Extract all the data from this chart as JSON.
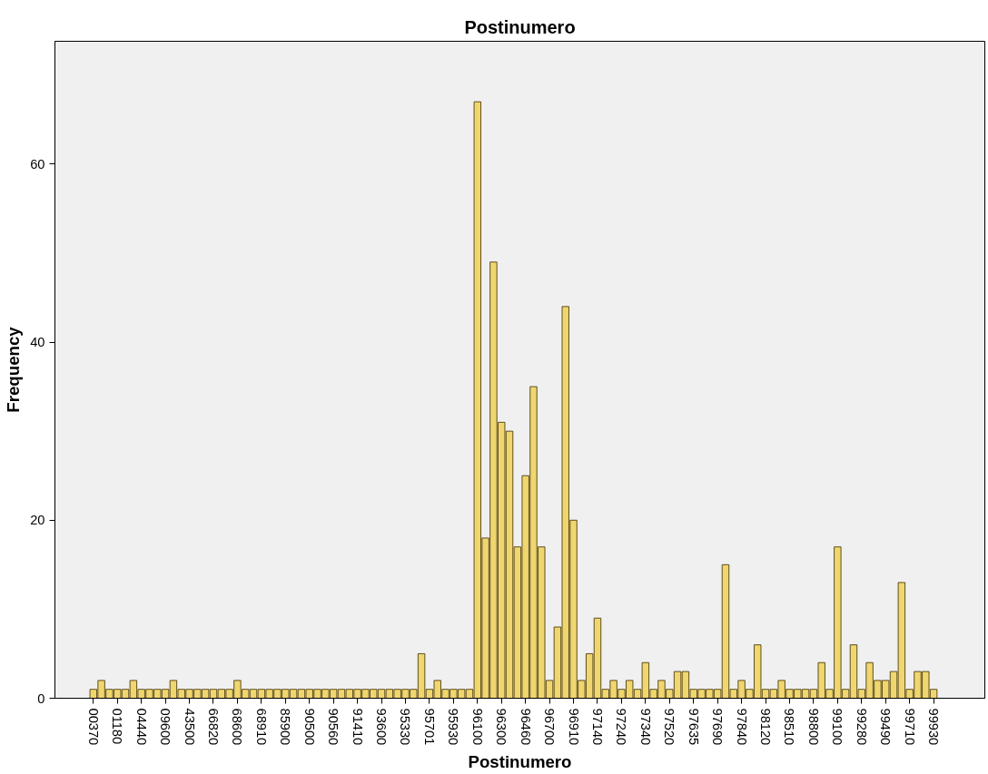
{
  "chart_data": {
    "type": "bar",
    "title": "Postinumero",
    "xlabel": "Postinumero",
    "ylabel": "Frequency",
    "categories": [
      "00370",
      null,
      null,
      "01180",
      null,
      null,
      "04440",
      null,
      null,
      "09600",
      null,
      null,
      "43500",
      null,
      null,
      "66820",
      null,
      null,
      "68600",
      null,
      null,
      "68910",
      null,
      null,
      "85900",
      null,
      null,
      "90500",
      null,
      null,
      "90560",
      null,
      null,
      "91410",
      null,
      null,
      "93600",
      null,
      null,
      "95330",
      null,
      null,
      "95701",
      null,
      null,
      "95930",
      null,
      null,
      "96100",
      null,
      null,
      "96300",
      null,
      null,
      "96460",
      null,
      null,
      "96700",
      null,
      null,
      "96910",
      null,
      null,
      "97140",
      null,
      null,
      "97240",
      null,
      null,
      "97340",
      null,
      null,
      "97520",
      null,
      null,
      "97635",
      null,
      null,
      "97690",
      null,
      null,
      "97840",
      null,
      null,
      "98120",
      null,
      null,
      "98510",
      null,
      null,
      "98800",
      null,
      null,
      "99100",
      null,
      null,
      "99280",
      null,
      null,
      "99490",
      null,
      null,
      "99710",
      null,
      null,
      "99930"
    ],
    "values": [
      1,
      2,
      1,
      1,
      1,
      2,
      1,
      1,
      1,
      1,
      2,
      1,
      1,
      1,
      1,
      1,
      1,
      1,
      2,
      1,
      1,
      1,
      1,
      1,
      1,
      1,
      1,
      1,
      1,
      1,
      1,
      1,
      1,
      1,
      1,
      1,
      1,
      1,
      1,
      1,
      1,
      5,
      1,
      2,
      1,
      1,
      1,
      1,
      67,
      18,
      49,
      31,
      30,
      17,
      25,
      35,
      17,
      2,
      8,
      44,
      20,
      2,
      5,
      9,
      1,
      2,
      1,
      2,
      1,
      4,
      1,
      2,
      1,
      3,
      3,
      1,
      1,
      1,
      1,
      15,
      1,
      2,
      1,
      6,
      1,
      1,
      2,
      1,
      1,
      1,
      1,
      4,
      1,
      17,
      1,
      6,
      1,
      4,
      2,
      2,
      3,
      13,
      1,
      3,
      3,
      1
    ],
    "color": "#f0d66e",
    "ylim": [
      0,
      73.8
    ],
    "yticks": [
      0,
      20,
      40,
      60
    ],
    "grid": false
  }
}
